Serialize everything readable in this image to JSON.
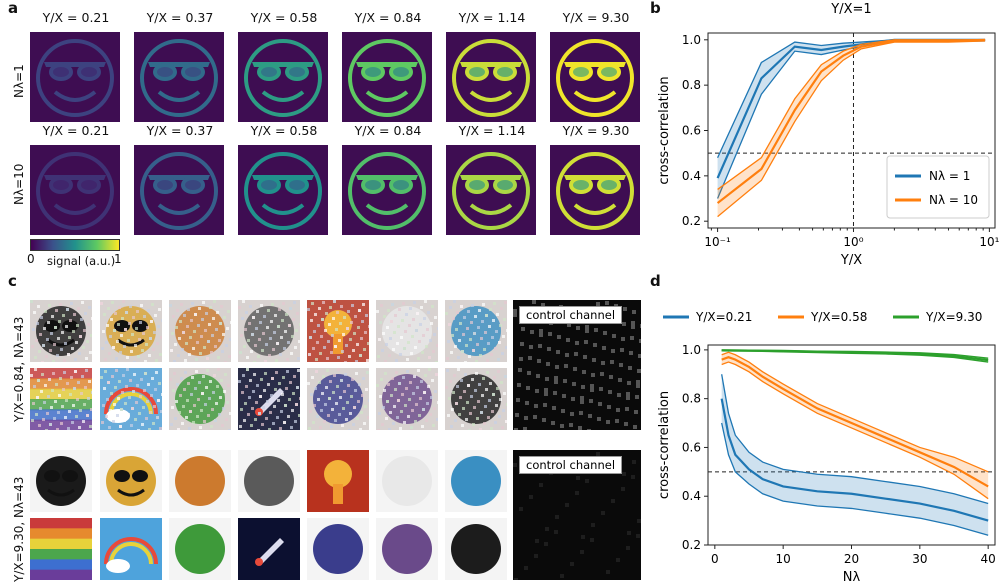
{
  "panel_labels": {
    "a": "a",
    "b": "b",
    "c": "c",
    "d": "d"
  },
  "panel_a": {
    "titles": [
      "Y/X = 0.21",
      "Y/X = 0.37",
      "Y/X = 0.58",
      "Y/X = 0.84",
      "Y/X = 1.14",
      "Y/X = 9.30"
    ],
    "brightness": [
      0.2,
      0.35,
      0.55,
      0.75,
      0.92,
      0.98
    ],
    "row_labels": [
      "Nλ=1",
      "Nλ=10"
    ],
    "colorbar": {
      "label": "signal (a.u.)",
      "min": "0",
      "max": "1"
    }
  },
  "panel_c": {
    "row_labels": [
      "Y/X=0.84, Nλ=43",
      "Y/X=9.30, Nλ=43"
    ],
    "control_label": "control channel",
    "tile_colors": [
      [
        "#1a1a1a",
        "#d9a536",
        "#cc7a2e",
        "#5a5a5a",
        "#b8321e",
        "#e8e8e8",
        "#3a8fc2"
      ],
      [
        "#c93b3b",
        "#3d8fd0",
        "#3e9a3a",
        "#0c1030",
        "#3a3d8c",
        "#6a4a8a",
        "#1c1c1c"
      ]
    ]
  },
  "chart_data": [
    {
      "type": "line",
      "title": "Y/X=1",
      "xlabel": "Y/X",
      "ylabel": "cross-correlation",
      "xscale": "log",
      "xlim": [
        0.085,
        11
      ],
      "ylim": [
        0.17,
        1.03
      ],
      "xticks": [
        0.1,
        1,
        10
      ],
      "xtick_labels": [
        "10⁻¹",
        "10⁰",
        "10¹"
      ],
      "yticks": [
        0.2,
        0.4,
        0.6,
        0.8,
        1.0
      ],
      "ytick_labels": [
        "0.2",
        "0.4",
        "0.6",
        "0.8",
        "1.0"
      ],
      "hline": 0.5,
      "vline": 1,
      "legend_position": "lower-right",
      "series": [
        {
          "name": "Nλ = 1",
          "color": "#1f77b4",
          "x": [
            0.1,
            0.21,
            0.37,
            0.58,
            0.84,
            1.14,
            2,
            5,
            9.3
          ],
          "y": [
            0.39,
            0.83,
            0.97,
            0.955,
            0.97,
            0.98,
            1.0,
            1.0,
            1.0
          ],
          "lower": [
            0.3,
            0.76,
            0.95,
            0.935,
            0.955,
            0.97,
            0.995,
            0.993,
            0.995
          ],
          "upper": [
            0.48,
            0.9,
            0.99,
            0.975,
            0.985,
            0.99,
            1.0,
            1.0,
            1.0
          ]
        },
        {
          "name": "Nλ = 10",
          "color": "#ff7f0e",
          "x": [
            0.1,
            0.21,
            0.37,
            0.58,
            0.84,
            1.14,
            2,
            5,
            9.3
          ],
          "y": [
            0.28,
            0.43,
            0.69,
            0.86,
            0.93,
            0.97,
            0.995,
            0.995,
            1.0
          ],
          "lower": [
            0.22,
            0.38,
            0.64,
            0.82,
            0.91,
            0.96,
            0.99,
            0.99,
            0.995
          ],
          "upper": [
            0.34,
            0.48,
            0.74,
            0.89,
            0.95,
            0.98,
            1.0,
            1.0,
            1.0
          ]
        }
      ]
    },
    {
      "type": "line",
      "title": "",
      "xlabel": "Nλ",
      "ylabel": "cross-correlation",
      "xlim": [
        -1,
        41
      ],
      "ylim": [
        0.2,
        1.02
      ],
      "xticks": [
        0,
        10,
        20,
        30,
        40
      ],
      "xtick_labels": [
        "0",
        "10",
        "20",
        "30",
        "40"
      ],
      "yticks": [
        0.2,
        0.4,
        0.6,
        0.8,
        1.0
      ],
      "ytick_labels": [
        "0.2",
        "0.4",
        "0.6",
        "0.8",
        "1.0"
      ],
      "hline": 0.5,
      "legend_position": "top",
      "series": [
        {
          "name": "Y/X=0.21",
          "color": "#1f77b4",
          "x": [
            1,
            2,
            3,
            5,
            7,
            10,
            15,
            20,
            25,
            30,
            35,
            40
          ],
          "y": [
            0.8,
            0.65,
            0.57,
            0.51,
            0.47,
            0.44,
            0.42,
            0.41,
            0.39,
            0.37,
            0.34,
            0.3
          ],
          "lower": [
            0.7,
            0.57,
            0.5,
            0.45,
            0.41,
            0.38,
            0.36,
            0.35,
            0.33,
            0.31,
            0.28,
            0.24
          ],
          "upper": [
            0.9,
            0.74,
            0.65,
            0.58,
            0.54,
            0.51,
            0.49,
            0.48,
            0.46,
            0.44,
            0.41,
            0.37
          ]
        },
        {
          "name": "Y/X=0.58",
          "color": "#ff7f0e",
          "x": [
            1,
            2,
            3,
            5,
            7,
            10,
            15,
            20,
            25,
            30,
            35,
            40
          ],
          "y": [
            0.96,
            0.97,
            0.96,
            0.93,
            0.89,
            0.84,
            0.76,
            0.7,
            0.64,
            0.58,
            0.52,
            0.44
          ],
          "lower": [
            0.94,
            0.95,
            0.94,
            0.91,
            0.87,
            0.82,
            0.74,
            0.68,
            0.62,
            0.56,
            0.49,
            0.39
          ],
          "upper": [
            0.98,
            0.99,
            0.98,
            0.95,
            0.91,
            0.86,
            0.78,
            0.72,
            0.66,
            0.6,
            0.56,
            0.5
          ]
        },
        {
          "name": "Y/X=9.30",
          "color": "#2ca02c",
          "x": [
            1,
            5,
            10,
            15,
            20,
            25,
            30,
            35,
            40
          ],
          "y": [
            0.998,
            0.997,
            0.995,
            0.992,
            0.99,
            0.987,
            0.983,
            0.975,
            0.958
          ],
          "lower": [
            0.996,
            0.995,
            0.992,
            0.989,
            0.986,
            0.983,
            0.978,
            0.969,
            0.95
          ],
          "upper": [
            1.0,
            0.999,
            0.998,
            0.995,
            0.994,
            0.991,
            0.988,
            0.981,
            0.966
          ]
        }
      ]
    }
  ]
}
